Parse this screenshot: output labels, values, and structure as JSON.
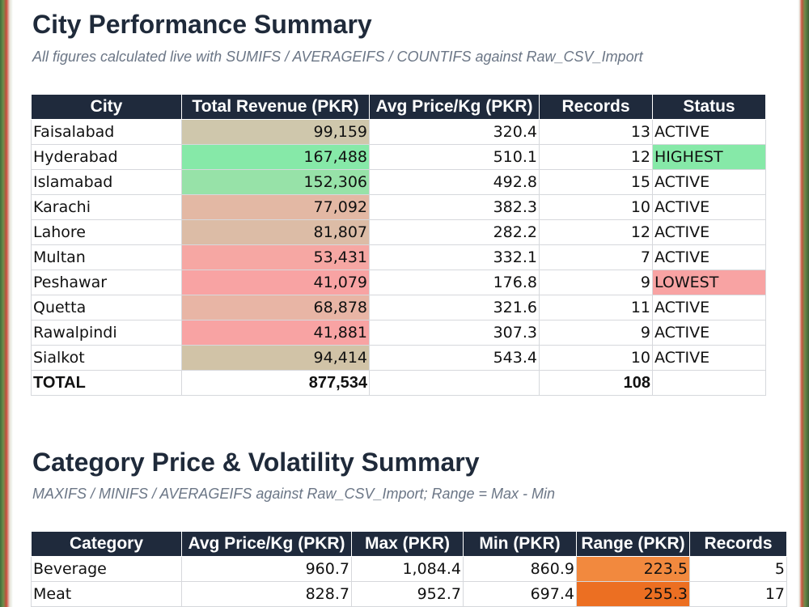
{
  "city_section": {
    "title": "City Performance Summary",
    "subtitle": "All figures calculated live with SUMIFS / AVERAGEIFS / COUNTIFS against Raw_CSV_Import",
    "headers": [
      "City",
      "Total Revenue (PKR)",
      "Avg Price/Kg (PKR)",
      "Records",
      "Status"
    ],
    "rows": [
      {
        "city": "Faisalabad",
        "revenue": "99,159",
        "avg": "320.4",
        "records": "13",
        "status": "ACTIVE",
        "rev_color": "#cfc7ac",
        "status_color": "#ffffff"
      },
      {
        "city": "Hyderabad",
        "revenue": "167,488",
        "avg": "510.1",
        "records": "12",
        "status": "HIGHEST",
        "rev_color": "#86e9a8",
        "status_color": "#86e9a8"
      },
      {
        "city": "Islamabad",
        "revenue": "152,306",
        "avg": "492.8",
        "records": "15",
        "status": "ACTIVE",
        "rev_color": "#97e2a8",
        "status_color": "#ffffff"
      },
      {
        "city": "Karachi",
        "revenue": "77,092",
        "avg": "382.3",
        "records": "10",
        "status": "ACTIVE",
        "rev_color": "#e3b8a4",
        "status_color": "#ffffff"
      },
      {
        "city": "Lahore",
        "revenue": "81,807",
        "avg": "282.2",
        "records": "12",
        "status": "ACTIVE",
        "rev_color": "#dcbca6",
        "status_color": "#ffffff"
      },
      {
        "city": "Multan",
        "revenue": "53,431",
        "avg": "332.1",
        "records": "7",
        "status": "ACTIVE",
        "rev_color": "#f6a7a3",
        "status_color": "#ffffff"
      },
      {
        "city": "Peshawar",
        "revenue": "41,079",
        "avg": "176.8",
        "records": "9",
        "status": "LOWEST",
        "rev_color": "#f8a3a3",
        "status_color": "#f8a3a3"
      },
      {
        "city": "Quetta",
        "revenue": "68,878",
        "avg": "321.6",
        "records": "11",
        "status": "ACTIVE",
        "rev_color": "#e8b5a5",
        "status_color": "#ffffff"
      },
      {
        "city": "Rawalpindi",
        "revenue": "41,881",
        "avg": "307.3",
        "records": "9",
        "status": "ACTIVE",
        "rev_color": "#f8a3a3",
        "status_color": "#ffffff"
      },
      {
        "city": "Sialkot",
        "revenue": "94,414",
        "avg": "543.4",
        "records": "10",
        "status": "ACTIVE",
        "rev_color": "#d1c3a7",
        "status_color": "#ffffff"
      }
    ],
    "total": {
      "label": "TOTAL",
      "revenue": "877,534",
      "avg": "",
      "records": "108",
      "status": ""
    }
  },
  "category_section": {
    "title": "Category Price & Volatility Summary",
    "subtitle": "MAXIFS / MINIFS / AVERAGEIFS against Raw_CSV_Import; Range = Max - Min",
    "headers": [
      "Category",
      "Avg Price/Kg (PKR)",
      "Max (PKR)",
      "Min (PKR)",
      "Range (PKR)",
      "Records"
    ],
    "rows": [
      {
        "category": "Beverage",
        "avg": "960.7",
        "max": "1,084.4",
        "min": "860.9",
        "range": "223.5",
        "records": "5",
        "range_color": "#f2893e"
      },
      {
        "category": "Meat",
        "avg": "828.7",
        "max": "952.7",
        "min": "697.4",
        "range": "255.3",
        "records": "17",
        "range_color": "#ec6f22"
      }
    ]
  },
  "colors": {
    "header_bg": "#1f2a3c",
    "title": "#1f2a3a",
    "subtitle": "#6b7686"
  }
}
